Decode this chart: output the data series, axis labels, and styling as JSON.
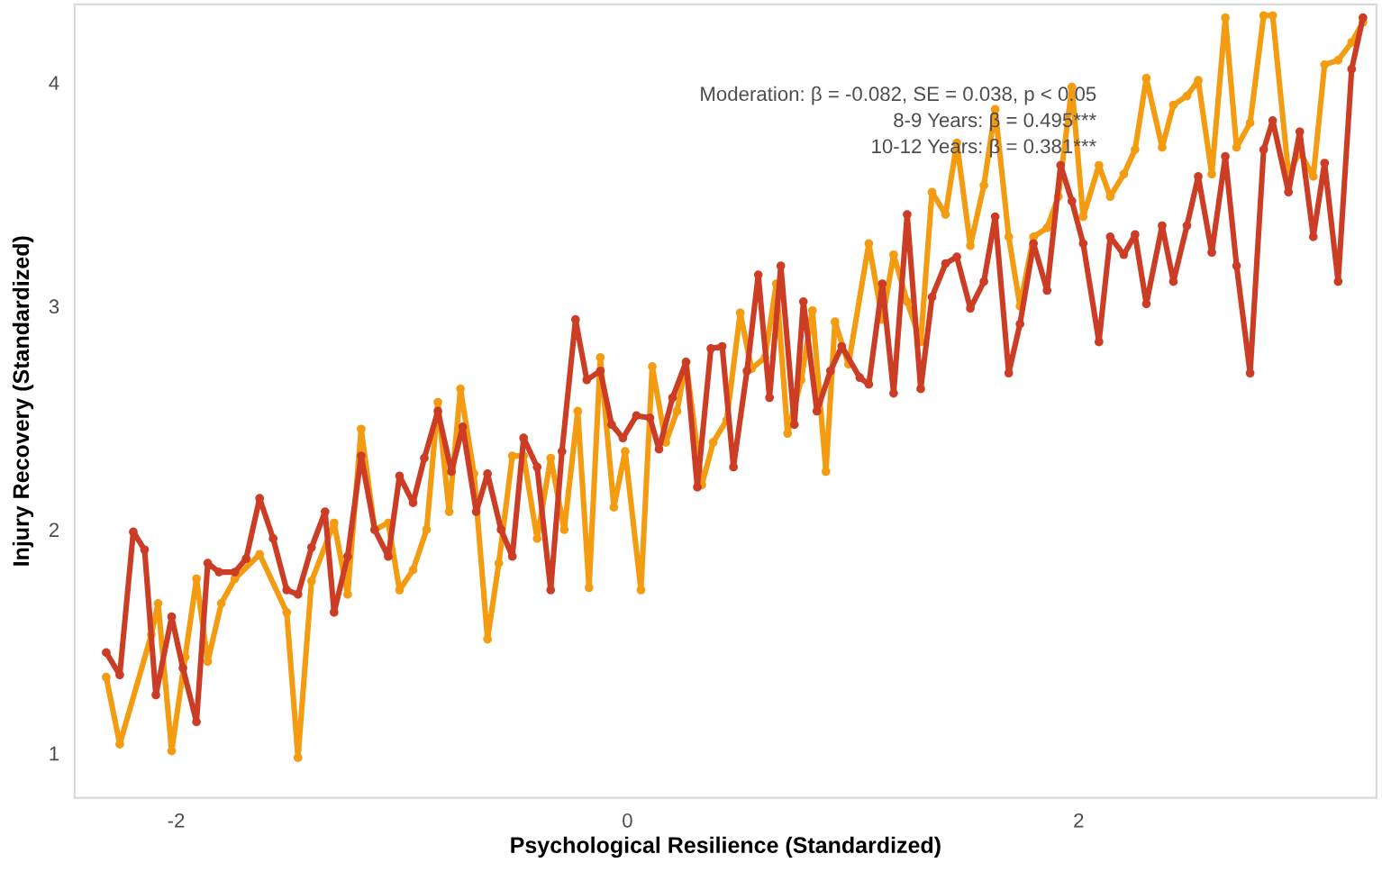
{
  "chart_data": {
    "type": "line",
    "xlabel": "Psychological Resilience (Standardized)",
    "ylabel": "Injury Recovery (Standardized)",
    "annotations": [
      "Moderation: β = -0.082, SE = 0.038, p < 0.05",
      "8-9 Years: β = 0.495***",
      "10-12 Years: β = 0.381***"
    ],
    "xlim": [
      -2.45,
      3.32
    ],
    "ylim": [
      0.8,
      4.35
    ],
    "xticks": [
      -2,
      0,
      2
    ],
    "yticks": [
      1,
      2,
      3,
      4
    ],
    "grid": false,
    "legend": false,
    "marker": "circle",
    "line_style": "solid",
    "series": [
      {
        "color": "#f39c12",
        "x": [
          -2.31,
          -2.25,
          -2.11,
          -2.08,
          -2.02,
          -1.96,
          -1.91,
          -1.86,
          -1.8,
          -1.74,
          -1.63,
          -1.51,
          -1.46,
          -1.4,
          -1.3,
          -1.24,
          -1.18,
          -1.12,
          -1.06,
          -1.01,
          -0.95,
          -0.89,
          -0.84,
          -0.79,
          -0.74,
          -0.68,
          -0.62,
          -0.57,
          -0.51,
          -0.46,
          -0.4,
          -0.34,
          -0.28,
          -0.22,
          -0.17,
          -0.12,
          -0.06,
          -0.01,
          0.06,
          0.11,
          0.17,
          0.22,
          0.26,
          0.33,
          0.38,
          0.44,
          0.5,
          0.55,
          0.61,
          0.66,
          0.71,
          0.77,
          0.82,
          0.88,
          0.92,
          0.98,
          1.07,
          1.13,
          1.18,
          1.24,
          1.3,
          1.35,
          1.41,
          1.46,
          1.52,
          1.58,
          1.63,
          1.69,
          1.74,
          1.8,
          1.86,
          1.91,
          1.97,
          2.02,
          2.09,
          2.14,
          2.2,
          2.25,
          2.3,
          2.37,
          2.42,
          2.48,
          2.53,
          2.59,
          2.65,
          2.7,
          2.76,
          2.82,
          2.86,
          2.93,
          2.98,
          3.04,
          3.09,
          3.15,
          3.21,
          3.26
        ],
        "values": [
          1.34,
          1.04,
          1.53,
          1.67,
          1.01,
          1.43,
          1.78,
          1.41,
          1.67,
          1.78,
          1.89,
          1.63,
          0.98,
          1.77,
          2.03,
          1.71,
          2.45,
          2.0,
          2.03,
          1.73,
          1.82,
          2.0,
          2.57,
          2.08,
          2.63,
          2.25,
          1.51,
          1.85,
          2.33,
          2.33,
          1.96,
          2.32,
          2.0,
          2.53,
          1.74,
          2.77,
          2.1,
          2.35,
          1.73,
          2.73,
          2.39,
          2.53,
          2.75,
          2.2,
          2.39,
          2.49,
          2.97,
          2.72,
          2.77,
          3.1,
          2.43,
          2.67,
          2.98,
          2.26,
          2.93,
          2.74,
          3.28,
          2.94,
          3.23,
          3.02,
          2.84,
          3.51,
          3.41,
          3.73,
          3.27,
          3.54,
          3.88,
          3.31,
          3.0,
          3.31,
          3.35,
          3.49,
          3.98,
          3.4,
          3.63,
          3.49,
          3.59,
          3.7,
          4.02,
          3.71,
          3.9,
          3.94,
          4.01,
          3.59,
          4.29,
          3.71,
          3.82,
          4.3,
          4.3,
          3.59,
          3.69,
          3.58,
          4.08,
          4.1,
          4.18,
          4.27
        ]
      },
      {
        "color": "#cc3d25",
        "x": [
          -2.31,
          -2.25,
          -2.19,
          -2.14,
          -2.09,
          -2.02,
          -1.97,
          -1.91,
          -1.86,
          -1.81,
          -1.74,
          -1.69,
          -1.63,
          -1.57,
          -1.51,
          -1.46,
          -1.4,
          -1.34,
          -1.3,
          -1.24,
          -1.18,
          -1.12,
          -1.06,
          -1.01,
          -0.95,
          -0.9,
          -0.84,
          -0.78,
          -0.73,
          -0.67,
          -0.62,
          -0.56,
          -0.51,
          -0.46,
          -0.4,
          -0.34,
          -0.29,
          -0.23,
          -0.18,
          -0.12,
          -0.07,
          -0.02,
          0.04,
          0.1,
          0.14,
          0.2,
          0.26,
          0.31,
          0.37,
          0.42,
          0.47,
          0.53,
          0.58,
          0.63,
          0.68,
          0.74,
          0.78,
          0.84,
          0.9,
          0.95,
          1.03,
          1.07,
          1.13,
          1.18,
          1.24,
          1.3,
          1.35,
          1.41,
          1.46,
          1.52,
          1.58,
          1.63,
          1.69,
          1.74,
          1.8,
          1.86,
          1.92,
          1.97,
          2.02,
          2.09,
          2.14,
          2.2,
          2.25,
          2.3,
          2.37,
          2.42,
          2.48,
          2.53,
          2.59,
          2.65,
          2.7,
          2.76,
          2.82,
          2.86,
          2.93,
          2.98,
          3.04,
          3.09,
          3.15,
          3.21,
          3.26
        ],
        "values": [
          1.45,
          1.35,
          1.99,
          1.91,
          1.26,
          1.61,
          1.38,
          1.14,
          1.85,
          1.81,
          1.81,
          1.87,
          2.14,
          1.96,
          1.73,
          1.71,
          1.92,
          2.08,
          1.63,
          1.88,
          2.33,
          2.0,
          1.88,
          2.24,
          2.12,
          2.32,
          2.53,
          2.26,
          2.46,
          2.08,
          2.25,
          2.0,
          1.88,
          2.41,
          2.28,
          1.73,
          2.35,
          2.94,
          2.67,
          2.71,
          2.47,
          2.41,
          2.51,
          2.5,
          2.36,
          2.59,
          2.75,
          2.19,
          2.81,
          2.82,
          2.28,
          2.71,
          3.14,
          2.59,
          3.18,
          2.47,
          3.02,
          2.53,
          2.71,
          2.82,
          2.68,
          2.65,
          3.1,
          2.61,
          3.41,
          2.63,
          3.04,
          3.19,
          3.22,
          2.99,
          3.11,
          3.4,
          2.7,
          2.92,
          3.28,
          3.07,
          3.63,
          3.47,
          3.28,
          2.84,
          3.31,
          3.23,
          3.32,
          3.01,
          3.36,
          3.11,
          3.36,
          3.58,
          3.24,
          3.67,
          3.18,
          2.7,
          3.7,
          3.83,
          3.51,
          3.78,
          3.31,
          3.64,
          3.11,
          4.06,
          4.29
        ]
      }
    ]
  }
}
